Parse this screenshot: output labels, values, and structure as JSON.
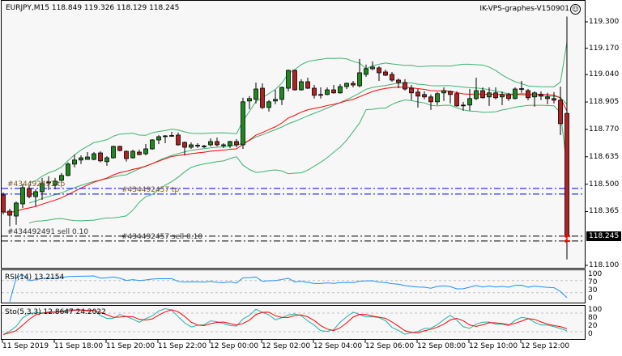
{
  "header": {
    "symbol_info": "EURJPY,M15  118.849 119.326 118.129 118.245",
    "expert_name": "IK-VPS-graphes-V150901",
    "expert_icon": "smiley-icon"
  },
  "price_axis": [
    "119.300",
    "119.170",
    "119.040",
    "118.905",
    "118.770",
    "118.635",
    "118.500",
    "118.365",
    "118.100"
  ],
  "price_axis_values": [
    119.3,
    119.17,
    119.04,
    118.905,
    118.77,
    118.635,
    118.5,
    118.365,
    118.1
  ],
  "current_price": "118.245",
  "time_axis": [
    "11 Sep 2019",
    "11 Sep 18:00",
    "11 Sep 20:00",
    "11 Sep 22:00",
    "12 Sep 00:00",
    "12 Sep 02:00",
    "12 Sep 04:00",
    "12 Sep 06:00",
    "12 Sep 08:00",
    "12 Sep 10:00",
    "12 Sep 12:00"
  ],
  "orders": [
    {
      "label": "#434492491 sell 0.10",
      "price": 118.244,
      "line_color": "#000000"
    },
    {
      "label": "#434492457 sell 0.10",
      "price": 118.22,
      "line_color": "#000000"
    },
    {
      "label": "#434492491 tp",
      "price": 118.479,
      "line_color": "#0000ff"
    },
    {
      "label": "#434492457 tp",
      "price": 118.451,
      "line_color": "#0000ff"
    }
  ],
  "rsi": {
    "label": "RSI(14) 13.2154",
    "levels": [
      "100",
      "70",
      "30",
      "0"
    ]
  },
  "stoch": {
    "label": "Sto(5,3,3) 12.8647 24.2022",
    "levels": [
      "100",
      "80",
      "20",
      "0"
    ]
  },
  "colors": {
    "bg": "#f7f7f7",
    "bull": "#1e8a1e",
    "bear": "#b22222",
    "bands": "#3cb371",
    "ma": "#ff0000",
    "rsi": "#1e90ff",
    "stoch_k": "#20b2aa",
    "stoch_d": "#ff0000",
    "grid": "#c0c0c0"
  },
  "chart_data": {
    "type": "candlestick",
    "ohlc": [
      [
        118.447,
        118.459,
        118.351,
        118.363
      ],
      [
        118.367,
        118.379,
        118.292,
        118.347
      ],
      [
        118.343,
        118.415,
        118.3,
        118.407
      ],
      [
        118.403,
        118.499,
        118.383,
        118.483
      ],
      [
        118.479,
        118.495,
        118.431,
        118.439
      ],
      [
        118.439,
        118.475,
        118.391,
        118.463
      ],
      [
        118.463,
        118.531,
        118.423,
        118.503
      ],
      [
        118.507,
        118.539,
        118.471,
        118.511
      ],
      [
        118.495,
        118.531,
        118.475,
        118.515
      ],
      [
        118.519,
        118.555,
        118.511,
        118.543
      ],
      [
        118.543,
        118.607,
        118.539,
        118.599
      ],
      [
        118.599,
        118.646,
        118.583,
        118.619
      ],
      [
        118.619,
        118.642,
        118.599,
        118.63
      ],
      [
        118.622,
        118.658,
        118.622,
        118.634
      ],
      [
        118.622,
        118.658,
        118.618,
        118.65
      ],
      [
        118.654,
        118.662,
        118.607,
        118.615
      ],
      [
        118.611,
        118.638,
        118.591,
        118.63
      ],
      [
        118.63,
        118.69,
        118.626,
        118.686
      ],
      [
        118.686,
        118.69,
        118.662,
        118.666
      ],
      [
        118.662,
        118.666,
        118.611,
        118.626
      ],
      [
        118.63,
        118.67,
        118.626,
        118.662
      ],
      [
        118.658,
        118.67,
        118.642,
        118.646
      ],
      [
        118.65,
        118.698,
        118.642,
        118.674
      ],
      [
        118.674,
        118.722,
        118.67,
        118.718
      ],
      [
        118.718,
        118.742,
        118.698,
        118.734
      ],
      [
        118.738,
        118.742,
        118.702,
        118.736
      ],
      [
        118.738,
        118.758,
        118.734,
        118.74
      ],
      [
        118.742,
        118.754,
        118.69,
        118.694
      ],
      [
        118.706,
        118.71,
        118.642,
        118.682
      ],
      [
        118.682,
        118.706,
        118.674,
        118.694
      ],
      [
        118.69,
        118.702,
        118.678,
        118.692
      ],
      [
        118.686,
        118.694,
        118.678,
        118.688
      ],
      [
        118.694,
        118.726,
        118.686,
        118.71
      ],
      [
        118.71,
        118.73,
        118.686,
        118.694
      ],
      [
        118.694,
        118.702,
        118.678,
        118.69
      ],
      [
        118.69,
        118.714,
        118.678,
        118.71
      ],
      [
        118.71,
        118.722,
        118.682,
        118.694
      ],
      [
        118.694,
        118.926,
        118.674,
        118.906
      ],
      [
        118.91,
        118.934,
        118.87,
        118.922
      ],
      [
        118.918,
        119.001,
        118.898,
        118.969
      ],
      [
        118.973,
        118.997,
        118.87,
        118.878
      ],
      [
        118.878,
        118.914,
        118.858,
        118.906
      ],
      [
        118.91,
        118.965,
        118.894,
        118.918
      ],
      [
        118.918,
        118.981,
        118.89,
        118.977
      ],
      [
        118.973,
        119.065,
        118.957,
        119.061
      ],
      [
        119.061,
        119.065,
        118.961,
        118.965
      ],
      [
        118.965,
        119.017,
        118.961,
        119.005
      ],
      [
        119.005,
        119.025,
        118.969,
        118.973
      ],
      [
        118.973,
        118.989,
        118.922,
        118.938
      ],
      [
        118.942,
        118.977,
        118.922,
        118.938
      ],
      [
        118.942,
        118.977,
        118.938,
        118.965
      ],
      [
        118.965,
        118.989,
        118.946,
        118.95
      ],
      [
        118.95,
        118.993,
        118.946,
        118.981
      ],
      [
        118.981,
        119.001,
        118.969,
        118.997
      ],
      [
        118.997,
        119.009,
        118.977,
        118.989
      ],
      [
        118.985,
        119.117,
        118.977,
        119.049
      ],
      [
        119.041,
        119.089,
        119.029,
        119.069
      ],
      [
        119.069,
        119.105,
        119.061,
        119.077
      ],
      [
        119.073,
        119.081,
        119.009,
        119.049
      ],
      [
        119.053,
        119.065,
        119.033,
        119.037
      ],
      [
        119.041,
        119.053,
        119.005,
        119.013
      ],
      [
        119.013,
        119.021,
        118.973,
        119.001
      ],
      [
        119.001,
        119.017,
        118.961,
        118.969
      ],
      [
        118.973,
        118.989,
        118.914,
        118.95
      ],
      [
        118.954,
        118.969,
        118.878,
        118.934
      ],
      [
        118.942,
        118.957,
        118.918,
        118.93
      ],
      [
        118.93,
        118.942,
        118.866,
        118.906
      ],
      [
        118.906,
        118.954,
        118.89,
        118.946
      ],
      [
        118.95,
        118.977,
        118.91,
        118.961
      ],
      [
        118.957,
        118.961,
        118.898,
        118.942
      ],
      [
        118.946,
        118.957,
        118.882,
        118.886
      ],
      [
        118.89,
        118.906,
        118.862,
        118.888
      ],
      [
        118.89,
        118.969,
        118.862,
        118.922
      ],
      [
        118.922,
        119.025,
        118.914,
        118.961
      ],
      [
        118.961,
        118.977,
        118.922,
        118.926
      ],
      [
        118.93,
        118.977,
        118.886,
        118.95
      ],
      [
        118.95,
        118.977,
        118.918,
        118.926
      ],
      [
        118.93,
        118.957,
        118.89,
        118.942
      ],
      [
        118.942,
        118.95,
        118.91,
        118.922
      ],
      [
        118.922,
        118.977,
        118.918,
        118.969
      ],
      [
        118.969,
        119.009,
        118.95,
        118.971
      ],
      [
        118.961,
        118.969,
        118.914,
        118.926
      ],
      [
        118.93,
        118.957,
        118.882,
        118.95
      ],
      [
        118.942,
        118.957,
        118.914,
        118.934
      ],
      [
        118.93,
        118.95,
        118.894,
        118.922
      ],
      [
        118.922,
        118.954,
        118.898,
        118.914
      ],
      [
        118.914,
        118.981,
        118.742,
        118.798
      ],
      [
        118.849,
        119.326,
        118.129,
        118.245
      ]
    ],
    "ylim": [
      118.1,
      119.3
    ],
    "indicators": [
      "Bollinger Bands(20,2)",
      "MA(20)",
      "RSI(14)",
      "Stochastic(5,3,3)"
    ]
  }
}
